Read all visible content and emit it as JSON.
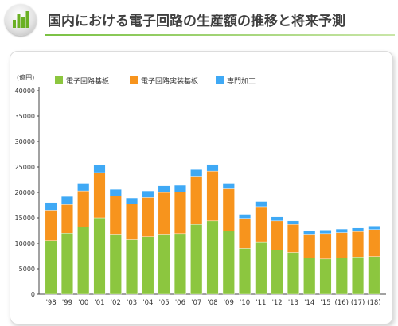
{
  "page": {
    "title": "国内における電子回路の生産額の推移と将来予測"
  },
  "colors": {
    "series": [
      "#8cc63f",
      "#f7941d",
      "#3fa9f5"
    ],
    "title_rule": "#7ac143",
    "logo_bars": "#6ab023"
  },
  "chart_data": {
    "type": "bar",
    "stacked": true,
    "unit": "(億円)",
    "categories": [
      "'98",
      "'99",
      "'00",
      "'01",
      "'02",
      "'03",
      "'04",
      "'05",
      "'06",
      "'07",
      "'08",
      "'09",
      "'10",
      "'11",
      "'12",
      "'13",
      "'14",
      "'15",
      "(16)",
      "(17)",
      "(18)"
    ],
    "series": [
      {
        "name": "電子回路基板",
        "values": [
          10500,
          12000,
          13200,
          15000,
          11800,
          10700,
          11300,
          11800,
          11900,
          13700,
          14400,
          12400,
          9000,
          10300,
          8700,
          8200,
          7100,
          6900,
          7100,
          7300,
          7400
        ]
      },
      {
        "name": "電子回路実装基板",
        "values": [
          6000,
          5600,
          7100,
          8900,
          7500,
          7000,
          7700,
          8200,
          8200,
          9500,
          9800,
          8300,
          5900,
          6900,
          5700,
          5500,
          4700,
          5000,
          5000,
          5000,
          5300
        ]
      },
      {
        "name": "専門加工",
        "values": [
          1500,
          1600,
          1500,
          1500,
          1300,
          1200,
          1300,
          1300,
          1300,
          1300,
          1300,
          1100,
          800,
          1000,
          800,
          700,
          700,
          700,
          700,
          700,
          700
        ]
      }
    ],
    "ylim": [
      0,
      40000
    ],
    "yticks": [
      0,
      5000,
      10000,
      15000,
      20000,
      25000,
      30000,
      35000,
      40000
    ],
    "grid": false,
    "legend_position": "top-left"
  }
}
